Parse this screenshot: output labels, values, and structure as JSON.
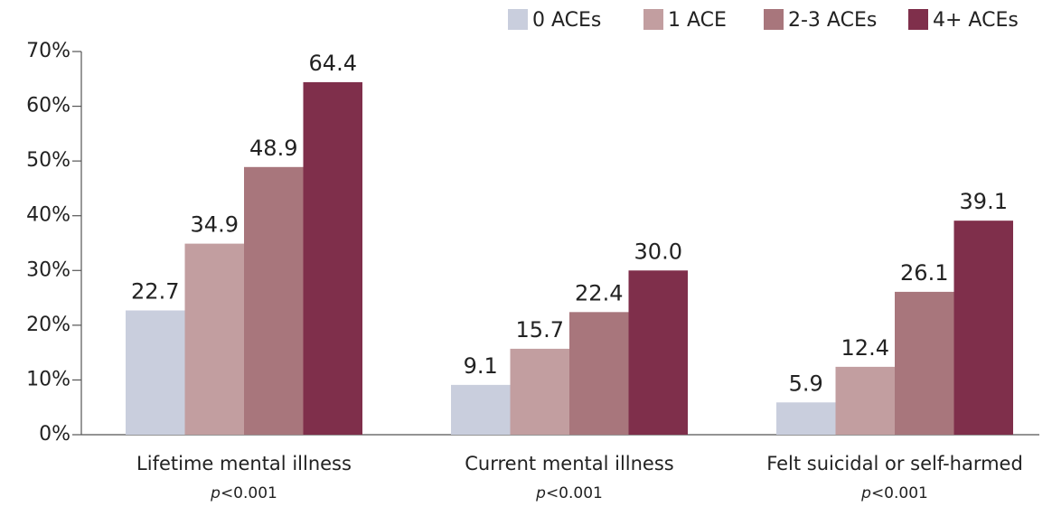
{
  "chart_data": {
    "type": "bar",
    "categories": [
      "Lifetime mental illness",
      "Current mental illness",
      "Felt suicidal or self-harmed"
    ],
    "annotations": [
      "p<0.001",
      "p<0.001",
      "p<0.001"
    ],
    "series": [
      {
        "name": "0 ACEs",
        "color": "#c9cedd",
        "values": [
          22.7,
          9.1,
          5.9
        ]
      },
      {
        "name": "1 ACE",
        "color": "#c29ea0",
        "values": [
          34.9,
          15.7,
          12.4
        ]
      },
      {
        "name": "2-3 ACEs",
        "color": "#a8767c",
        "values": [
          48.9,
          22.4,
          26.1
        ]
      },
      {
        "name": "4+ ACEs",
        "color": "#7f2f4b",
        "values": [
          64.4,
          30.0,
          39.1
        ],
        "value_labels": [
          "64.4",
          "30.0",
          "39.1"
        ]
      }
    ],
    "ylim": [
      0,
      70
    ],
    "yticks": [
      {
        "value": 0,
        "label": "0%"
      },
      {
        "value": 10,
        "label": "10%"
      },
      {
        "value": 20,
        "label": "20%"
      },
      {
        "value": 30,
        "label": "30%"
      },
      {
        "value": 40,
        "label": "40%"
      },
      {
        "value": 50,
        "label": "50%"
      },
      {
        "value": 60,
        "label": "60%"
      },
      {
        "value": 70,
        "label": "70%"
      }
    ],
    "legend": "top-right"
  }
}
